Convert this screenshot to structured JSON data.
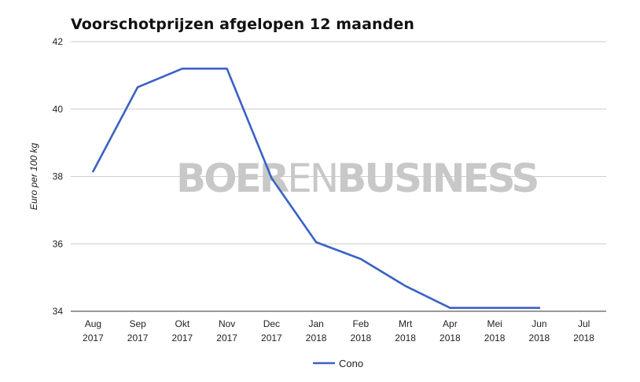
{
  "chart_data": {
    "type": "line",
    "title": "Voorschotprijzen afgelopen 12 maanden",
    "ylabel": "Euro per 100 kg",
    "xlabel": "",
    "ylim": [
      34,
      42
    ],
    "yticks": [
      34,
      36,
      38,
      40,
      42
    ],
    "categories": [
      [
        "Aug",
        "2017"
      ],
      [
        "Sep",
        "2017"
      ],
      [
        "Okt",
        "2017"
      ],
      [
        "Nov",
        "2017"
      ],
      [
        "Dec",
        "2017"
      ],
      [
        "Jan",
        "2018"
      ],
      [
        "Feb",
        "2018"
      ],
      [
        "Mrt",
        "2018"
      ],
      [
        "Apr",
        "2018"
      ],
      [
        "Mei",
        "2018"
      ],
      [
        "Jun",
        "2018"
      ],
      [
        "Jul",
        "2018"
      ]
    ],
    "series": [
      {
        "name": "Cono",
        "color": "#3a62c4",
        "values": [
          38.15,
          40.65,
          41.2,
          41.2,
          37.95,
          36.05,
          35.55,
          34.75,
          34.1,
          34.1,
          34.1,
          null
        ]
      }
    ],
    "grid": true,
    "legend_position": "bottom",
    "watermark": {
      "bold1": "BOER",
      "thin": "EN",
      "bold2": "BUSINESS"
    }
  }
}
